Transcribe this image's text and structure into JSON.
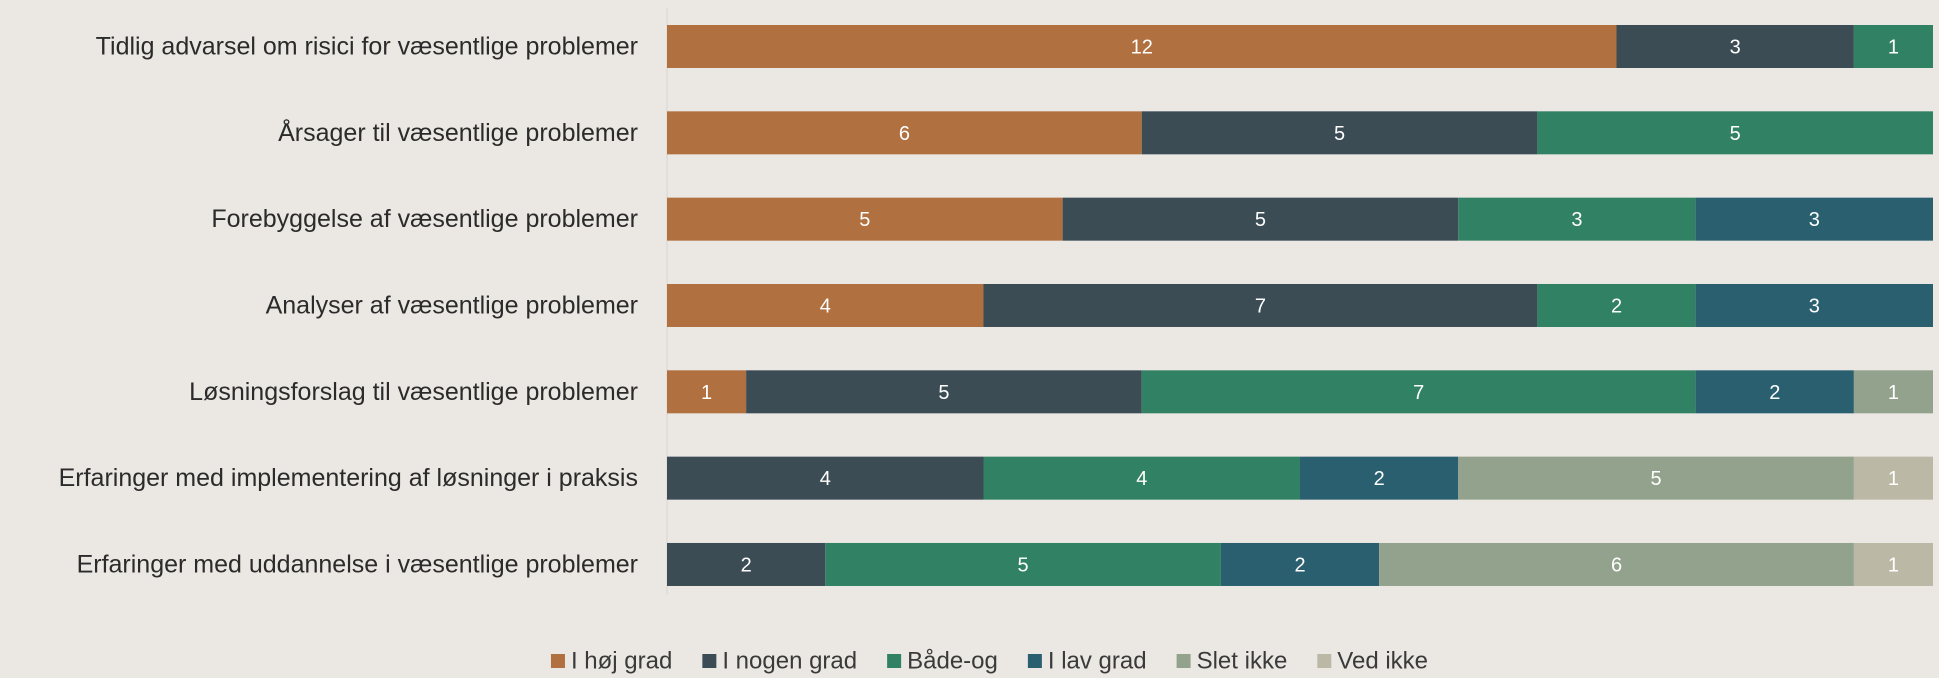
{
  "chart_data": {
    "type": "bar",
    "orientation": "horizontal",
    "stacked": true,
    "categories": [
      "Tidlig advarsel om risici for væsentlige problemer",
      "Årsager til væsentlige problemer",
      "Forebyggelse af væsentlige problemer",
      "Analyser af væsentlige problemer",
      "Løsningsforslag til væsentlige problemer",
      "Erfaringer med implementering af løsninger i praksis",
      "Erfaringer med uddannelse i væsentlige problemer"
    ],
    "series": [
      {
        "name": "I høj grad",
        "color": "#b07040",
        "values": [
          12,
          6,
          5,
          4,
          1,
          0,
          0
        ]
      },
      {
        "name": "I nogen grad",
        "color": "#3c4c55",
        "values": [
          3,
          5,
          5,
          7,
          5,
          4,
          2
        ]
      },
      {
        "name": "Både-og",
        "color": "#318164",
        "values": [
          1,
          5,
          3,
          2,
          7,
          4,
          5
        ]
      },
      {
        "name": "I lav grad",
        "color": "#2a5f70",
        "values": [
          0,
          0,
          3,
          3,
          2,
          2,
          2
        ]
      },
      {
        "name": "Slet ikke",
        "color": "#93a28c",
        "values": [
          0,
          0,
          0,
          0,
          1,
          5,
          6
        ]
      },
      {
        "name": "Ved ikke",
        "color": "#bbb9a6",
        "values": [
          0,
          0,
          0,
          0,
          0,
          1,
          1
        ]
      }
    ],
    "xlim": [
      0,
      16
    ],
    "grid": false,
    "legend_position": "bottom",
    "data_labels": true
  }
}
